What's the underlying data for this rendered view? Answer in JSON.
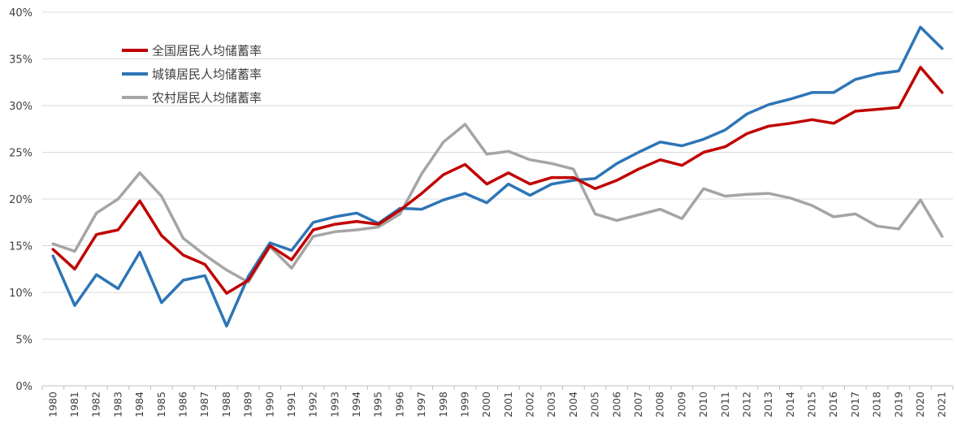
{
  "chart_data": {
    "type": "line",
    "title": "",
    "xlabel": "",
    "ylabel": "",
    "ylim": [
      0,
      40
    ],
    "y_ticks": [
      0,
      5,
      10,
      15,
      20,
      25,
      30,
      35,
      40
    ],
    "y_tick_labels": [
      "0%",
      "5%",
      "10%",
      "15%",
      "20%",
      "25%",
      "30%",
      "35%",
      "40%"
    ],
    "grid": true,
    "legend_position": "top-left",
    "x": [
      "1980",
      "1981",
      "1982",
      "1983",
      "1984",
      "1985",
      "1986",
      "1987",
      "1988",
      "1989",
      "1990",
      "1991",
      "1992",
      "1993",
      "1994",
      "1995",
      "1996",
      "1997",
      "1998",
      "1999",
      "2000",
      "2001",
      "2002",
      "2003",
      "2004",
      "2005",
      "2006",
      "2007",
      "2008",
      "2009",
      "2010",
      "2011",
      "2012",
      "2013",
      "2014",
      "2015",
      "2016",
      "2017",
      "2018",
      "2019",
      "2020",
      "2021"
    ],
    "series": [
      {
        "name": "全国居民人均储蓄率",
        "color": "#c00000",
        "values": [
          14.6,
          12.5,
          16.2,
          16.7,
          19.8,
          16.1,
          14.0,
          13.0,
          9.9,
          11.3,
          15.0,
          13.5,
          16.7,
          17.3,
          17.6,
          17.3,
          18.8,
          20.6,
          22.6,
          23.7,
          21.6,
          22.8,
          21.6,
          22.3,
          22.3,
          21.1,
          22.0,
          23.2,
          24.2,
          23.6,
          25.0,
          25.6,
          27.0,
          27.8,
          28.1,
          28.5,
          28.1,
          29.4,
          29.6,
          29.8,
          34.1,
          31.4
        ]
      },
      {
        "name": "城镇居民人均储蓄率",
        "color": "#2e75b6",
        "values": [
          13.9,
          8.6,
          11.9,
          10.4,
          14.3,
          8.9,
          11.3,
          11.8,
          6.4,
          11.7,
          15.3,
          14.5,
          17.5,
          18.1,
          18.5,
          17.4,
          19.0,
          18.9,
          19.9,
          20.6,
          19.6,
          21.6,
          20.4,
          21.6,
          22.0,
          22.2,
          23.8,
          25.0,
          26.1,
          25.7,
          26.4,
          27.4,
          29.1,
          30.1,
          30.7,
          31.4,
          31.4,
          32.8,
          33.4,
          33.7,
          38.4,
          36.1
        ]
      },
      {
        "name": "农村居民人均储蓄率",
        "color": "#a5a5a5",
        "values": [
          15.2,
          14.4,
          18.5,
          20.0,
          22.8,
          20.3,
          15.8,
          14.0,
          12.4,
          11.1,
          14.9,
          12.6,
          16.0,
          16.5,
          16.7,
          17.0,
          18.4,
          22.7,
          26.1,
          28.0,
          24.8,
          25.1,
          24.2,
          23.8,
          23.2,
          18.4,
          17.7,
          18.3,
          18.9,
          17.9,
          21.1,
          20.3,
          20.5,
          20.6,
          20.1,
          19.3,
          18.1,
          18.4,
          17.1,
          16.8,
          19.9,
          16.0
        ]
      }
    ]
  }
}
